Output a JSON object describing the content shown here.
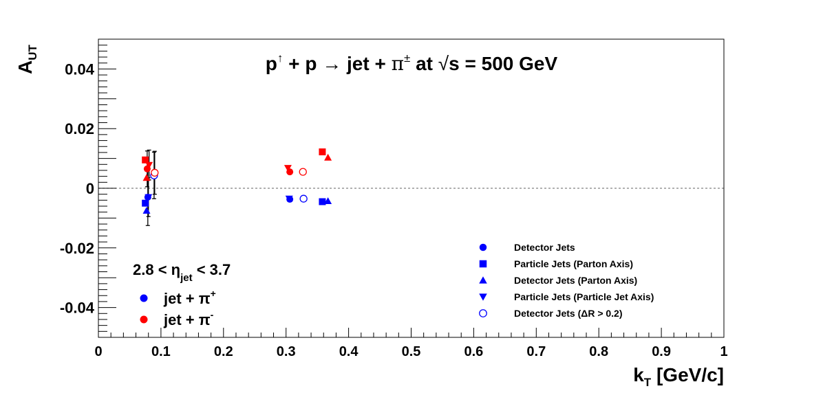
{
  "chart_data": {
    "type": "scatter",
    "title": "p↑ + p → jet + π± at √s = 500 GeV",
    "title_parts": {
      "p": "p",
      "up": "↑",
      "plus_p": " + p ",
      "arrow": "→",
      "jet": " jet + ",
      "pi": "π",
      "pm": "±",
      "at": " at ",
      "sqrt": "√",
      "s_eq": "s = 500 GeV"
    },
    "xlabel": "k",
    "xlabel_sub": "T",
    "xlabel_unit": " [GeV/c]",
    "ylabel": "A",
    "ylabel_sub": "UT",
    "xlim": [
      0,
      1
    ],
    "ylim": [
      -0.05,
      0.05
    ],
    "x_ticks": [
      0,
      0.1,
      0.2,
      0.3,
      0.4,
      0.5,
      0.6,
      0.7,
      0.8,
      0.9,
      1
    ],
    "x_tick_labels": [
      "0",
      "0.1",
      "0.2",
      "0.3",
      "0.4",
      "0.5",
      "0.6",
      "0.7",
      "0.8",
      "0.9",
      "1"
    ],
    "y_ticks": [
      -0.04,
      -0.02,
      0,
      0.02,
      0.04
    ],
    "y_tick_labels": [
      "-0.04",
      "-0.02",
      "0",
      "0.02",
      "0.04"
    ],
    "zero_line": true,
    "eta_label": {
      "pre": "2.8 < η",
      "sub": "jet",
      "post": " < 3.7"
    },
    "charge_legend": [
      {
        "label": "jet + π",
        "sup": "+",
        "color": "#0000ff"
      },
      {
        "label": "jet + π",
        "sup": "-",
        "color": "#ff0000"
      }
    ],
    "marker_legend_position": "bottom-right",
    "marker_legend": [
      {
        "label": "Detector Jets",
        "marker": "circle"
      },
      {
        "label": "Particle Jets (Parton Axis)",
        "marker": "square"
      },
      {
        "label": "Detector Jets (Parton Axis)",
        "marker": "triangle-up"
      },
      {
        "label": "Particle Jets (Particle Jet Axis)",
        "marker": "triangle-down"
      },
      {
        "label": "Detector Jets (ΔR > 0.2)",
        "marker": "open-circle"
      }
    ],
    "colors": {
      "pi_plus": "#0000ff",
      "pi_minus": "#ff0000",
      "error_bar": "#000000",
      "zero_line": "#808080"
    },
    "series": [
      {
        "name": "Detector Jets",
        "charge": "jet + π+",
        "marker": "circle",
        "color": "#0000ff",
        "points": [
          {
            "x": 0.079,
            "y": -0.003,
            "yerr": 0.0095
          },
          {
            "x": 0.306,
            "y": -0.0037
          }
        ]
      },
      {
        "name": "Detector Jets",
        "charge": "jet + π-",
        "marker": "circle",
        "color": "#ff0000",
        "points": [
          {
            "x": 0.078,
            "y": 0.0065,
            "yerr": 0.006
          },
          {
            "x": 0.306,
            "y": 0.0055
          }
        ]
      },
      {
        "name": "Particle Jets (Parton Axis)",
        "charge": "jet + π+",
        "marker": "square",
        "color": "#0000ff",
        "points": [
          {
            "x": 0.075,
            "y": -0.005
          },
          {
            "x": 0.358,
            "y": -0.0045
          }
        ]
      },
      {
        "name": "Particle Jets (Parton Axis)",
        "charge": "jet + π-",
        "marker": "square",
        "color": "#ff0000",
        "points": [
          {
            "x": 0.075,
            "y": 0.0095
          },
          {
            "x": 0.358,
            "y": 0.0122
          }
        ]
      },
      {
        "name": "Detector Jets (Parton Axis)",
        "charge": "jet + π+",
        "marker": "triangle-up",
        "color": "#0000ff",
        "points": [
          {
            "x": 0.077,
            "y": -0.0075
          },
          {
            "x": 0.367,
            "y": -0.0043
          }
        ]
      },
      {
        "name": "Detector Jets (Parton Axis)",
        "charge": "jet + π-",
        "marker": "triangle-up",
        "color": "#ff0000",
        "points": [
          {
            "x": 0.077,
            "y": 0.0035
          },
          {
            "x": 0.367,
            "y": 0.0103
          }
        ]
      },
      {
        "name": "Particle Jets (Particle Jet Axis)",
        "charge": "jet + π+",
        "marker": "triangle-down",
        "color": "#0000ff",
        "points": [
          {
            "x": 0.08,
            "y": -0.003,
            "yerr": 0.0065
          },
          {
            "x": 0.305,
            "y": -0.0035
          }
        ]
      },
      {
        "name": "Particle Jets (Particle Jet Axis)",
        "charge": "jet + π-",
        "marker": "triangle-down",
        "color": "#ff0000",
        "points": [
          {
            "x": 0.081,
            "y": 0.0078,
            "yerr": 0.005
          },
          {
            "x": 0.303,
            "y": 0.0068
          }
        ]
      },
      {
        "name": "Detector Jets (ΔR > 0.2)",
        "charge": "jet + π+",
        "marker": "open-circle",
        "color": "#0000ff",
        "points": [
          {
            "x": 0.089,
            "y": 0.0043,
            "yerr": 0.0078
          },
          {
            "x": 0.328,
            "y": -0.0035
          }
        ]
      },
      {
        "name": "Detector Jets (ΔR > 0.2)",
        "charge": "jet + π-",
        "marker": "open-circle",
        "color": "#ff0000",
        "points": [
          {
            "x": 0.09,
            "y": 0.0052,
            "yerr": 0.0072
          },
          {
            "x": 0.327,
            "y": 0.0055
          }
        ]
      }
    ]
  }
}
